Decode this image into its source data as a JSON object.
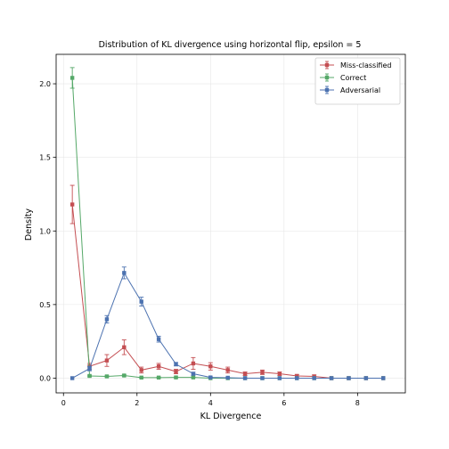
{
  "chart_data": {
    "type": "line",
    "title": "Distribution of KL divergence using horizontal flip, epsilon = 5",
    "xlabel": "KL Divergence",
    "ylabel": "Density",
    "xlim": [
      -0.2,
      9.3
    ],
    "ylim": [
      -0.1,
      2.2
    ],
    "xticks": [
      0,
      2,
      4,
      6,
      8
    ],
    "yticks": [
      0.0,
      0.5,
      1.0,
      1.5,
      2.0
    ],
    "xtick_labels": [
      "0",
      "2",
      "4",
      "6",
      "8"
    ],
    "ytick_labels": [
      "0.0",
      "0.5",
      "1.0",
      "1.5",
      "2.0"
    ],
    "grid": true,
    "legend_position": "top-right",
    "x": [
      0.24,
      0.71,
      1.18,
      1.65,
      2.12,
      2.59,
      3.06,
      3.53,
      4.0,
      4.47,
      4.94,
      5.41,
      5.88,
      6.35,
      6.82,
      7.29,
      7.76,
      8.23,
      8.7
    ],
    "series": [
      {
        "name": "Miss-classified",
        "color": "#c44e52",
        "values": [
          1.18,
          0.08,
          0.12,
          0.21,
          0.055,
          0.08,
          0.045,
          0.1,
          0.08,
          0.055,
          0.03,
          0.04,
          0.03,
          0.015,
          0.012,
          0.0,
          0.0,
          0.0,
          0.0
        ],
        "errors": [
          0.13,
          0.02,
          0.04,
          0.05,
          0.02,
          0.02,
          0.015,
          0.04,
          0.025,
          0.02,
          0.012,
          0.015,
          0.012,
          0.01,
          0.01,
          0.0,
          0.0,
          0.0,
          0.0
        ]
      },
      {
        "name": "Correct",
        "color": "#55a868",
        "values": [
          2.04,
          0.015,
          0.012,
          0.018,
          0.004,
          0.004,
          0.005,
          0.005,
          0.0,
          0.0,
          0.0,
          0.0,
          0.0,
          0.0,
          0.0,
          0.0,
          0.0,
          0.0,
          0.0
        ],
        "errors": [
          0.07,
          0.005,
          0.004,
          0.005,
          0.003,
          0.003,
          0.003,
          0.003,
          0.0,
          0.0,
          0.0,
          0.0,
          0.0,
          0.0,
          0.0,
          0.0,
          0.0,
          0.0,
          0.0
        ]
      },
      {
        "name": "Adversarial",
        "color": "#4c72b0",
        "values": [
          0.0,
          0.065,
          0.4,
          0.715,
          0.52,
          0.265,
          0.095,
          0.03,
          0.005,
          0.003,
          0.0,
          0.0,
          0.0,
          0.0,
          0.0,
          0.0,
          0.0,
          0.0,
          0.0
        ],
        "errors": [
          0.0,
          0.015,
          0.025,
          0.04,
          0.03,
          0.02,
          0.012,
          0.01,
          0.003,
          0.002,
          0.0,
          0.0,
          0.0,
          0.0,
          0.0,
          0.0,
          0.0,
          0.0,
          0.0
        ]
      }
    ]
  }
}
